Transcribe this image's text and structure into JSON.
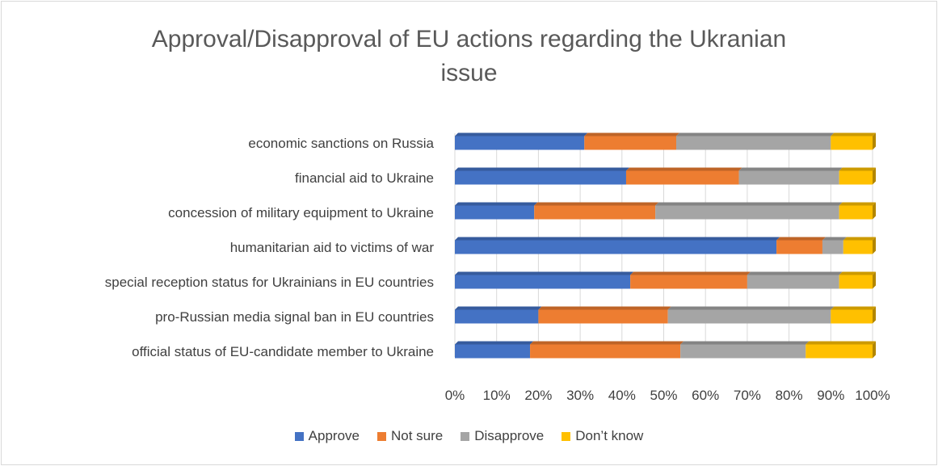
{
  "chart_data": {
    "type": "bar",
    "orientation": "horizontal",
    "stacked": "100%",
    "title_lines": [
      "Approval/Disapproval of EU actions regarding the Ukranian",
      "issue"
    ],
    "categories": [
      "economic sanctions on Russia",
      "financial aid to Ukraine",
      "concession of military equipment to Ukraine",
      "humanitarian aid to victims of war",
      "special reception status for Ukrainians in EU countries",
      "pro-Russian media signal ban in EU countries",
      "official status of EU-candidate member to Ukraine"
    ],
    "series": [
      {
        "name": "Approve",
        "color": "#4472c4",
        "values": [
          31,
          41,
          19,
          77,
          42,
          20,
          18
        ]
      },
      {
        "name": "Not sure",
        "color": "#ed7d31",
        "values": [
          22,
          27,
          29,
          11,
          28,
          31,
          36
        ]
      },
      {
        "name": "Disapprove",
        "color": "#a5a5a5",
        "values": [
          37,
          24,
          44,
          5,
          22,
          39,
          30
        ]
      },
      {
        "name": "Don’t know",
        "color": "#ffc000",
        "values": [
          10,
          8,
          8,
          7,
          8,
          10,
          16
        ]
      }
    ],
    "x_ticks": [
      "0%",
      "10%",
      "20%",
      "30%",
      "40%",
      "50%",
      "60%",
      "70%",
      "80%",
      "90%",
      "100%"
    ],
    "xlim": [
      0,
      100
    ],
    "grid": "vertical",
    "legend_position": "bottom"
  }
}
